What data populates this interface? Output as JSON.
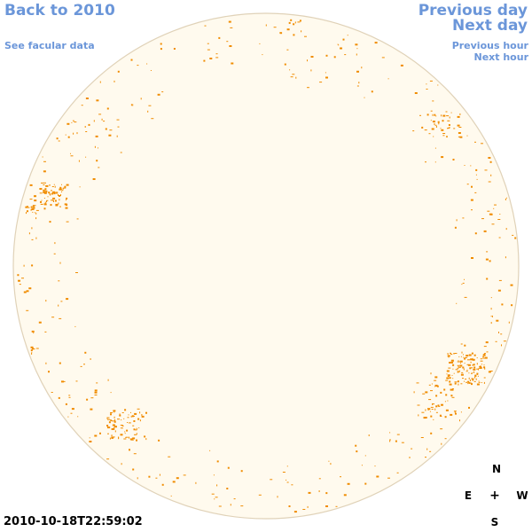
{
  "nav": {
    "back_label": "Back to 2010",
    "facular_label": "See facular data",
    "prev_day_label": "Previous day",
    "next_day_label": "Next day",
    "prev_hour_label": "Previous hour",
    "next_hour_label": "Next hour"
  },
  "timestamp": "2010-10-18T22:59:02",
  "compass": {
    "north": "N",
    "east": "E",
    "west": "W",
    "south": "S",
    "center": "+"
  },
  "colors": {
    "link": "#6b96d9",
    "disk_fill": "#fffaee",
    "disk_border": "#e0d2b8",
    "faculae": "#f08c00"
  }
}
